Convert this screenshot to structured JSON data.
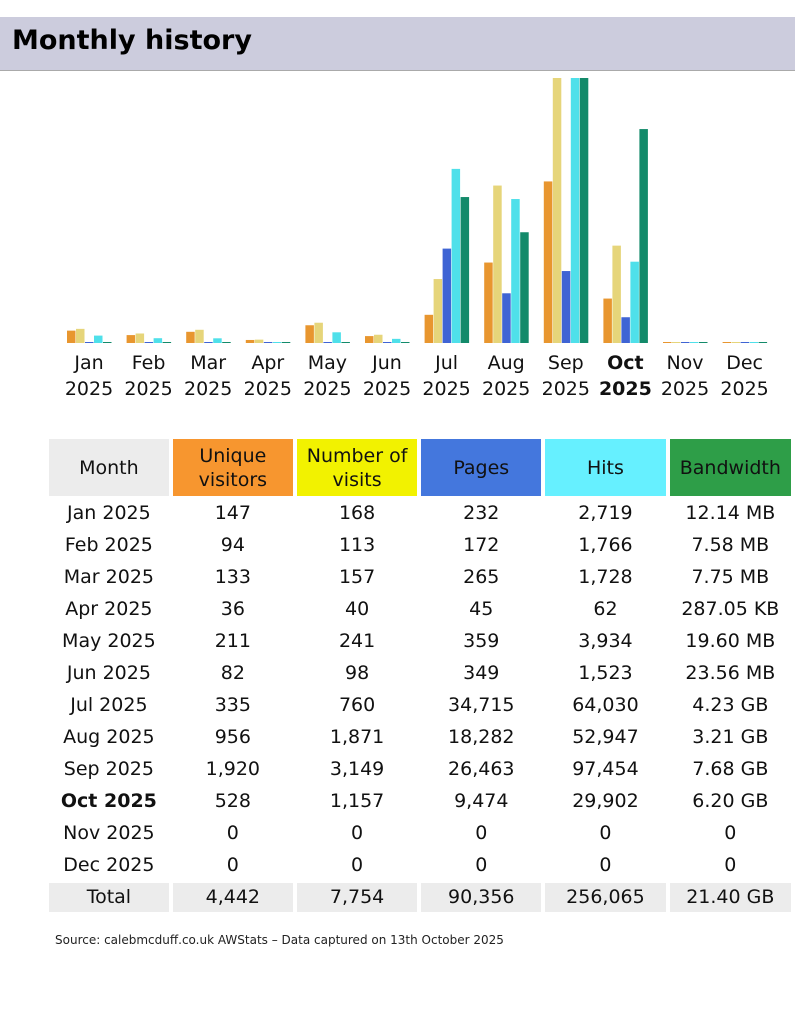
{
  "title": "Monthly history",
  "colors": {
    "unique": "#f7962f",
    "visits": "#f2f200",
    "pages": "#4477dd",
    "hits": "#66f0ff",
    "bandwidth": "#2e9e48",
    "header_bg": "#ccccdd"
  },
  "table": {
    "headers": [
      "Month",
      "Unique visitors",
      "Number of visits",
      "Pages",
      "Hits",
      "Bandwidth"
    ],
    "rows": [
      [
        "Jan 2025",
        "147",
        "168",
        "232",
        "2,719",
        "12.14 MB"
      ],
      [
        "Feb 2025",
        "94",
        "113",
        "172",
        "1,766",
        "7.58 MB"
      ],
      [
        "Mar 2025",
        "133",
        "157",
        "265",
        "1,728",
        "7.75 MB"
      ],
      [
        "Apr 2025",
        "36",
        "40",
        "45",
        "62",
        "287.05 KB"
      ],
      [
        "May 2025",
        "211",
        "241",
        "359",
        "3,934",
        "19.60 MB"
      ],
      [
        "Jun 2025",
        "82",
        "98",
        "349",
        "1,523",
        "23.56 MB"
      ],
      [
        "Jul 2025",
        "335",
        "760",
        "34,715",
        "64,030",
        "4.23 GB"
      ],
      [
        "Aug 2025",
        "956",
        "1,871",
        "18,282",
        "52,947",
        "3.21 GB"
      ],
      [
        "Sep 2025",
        "1,920",
        "3,149",
        "26,463",
        "97,454",
        "7.68 GB"
      ],
      [
        "Oct 2025",
        "528",
        "1,157",
        "9,474",
        "29,902",
        "6.20 GB"
      ],
      [
        "Nov 2025",
        "0",
        "0",
        "0",
        "0",
        "0"
      ],
      [
        "Dec 2025",
        "0",
        "0",
        "0",
        "0",
        "0"
      ]
    ],
    "total": [
      "Total",
      "4,442",
      "7,754",
      "90,356",
      "256,065",
      "21.40 GB"
    ]
  },
  "source": "Source: calebmcduff.co.uk AWStats – Data captured on 13th October 2025",
  "chart_data": {
    "type": "bar",
    "current_month": "Oct",
    "categories": [
      [
        "Jan",
        "2025"
      ],
      [
        "Feb",
        "2025"
      ],
      [
        "Mar",
        "2025"
      ],
      [
        "Apr",
        "2025"
      ],
      [
        "May",
        "2025"
      ],
      [
        "Jun",
        "2025"
      ],
      [
        "Jul",
        "2025"
      ],
      [
        "Aug",
        "2025"
      ],
      [
        "Sep",
        "2025"
      ],
      [
        "Oct",
        "2025"
      ],
      [
        "Nov",
        "2025"
      ],
      [
        "Dec",
        "2025"
      ]
    ],
    "series": [
      {
        "name": "Unique visitors",
        "color": "#e8962f",
        "values": [
          147,
          94,
          133,
          36,
          211,
          82,
          335,
          956,
          1920,
          528,
          0,
          0
        ]
      },
      {
        "name": "Number of visits",
        "color": "#e6d57a",
        "values": [
          168,
          113,
          157,
          40,
          241,
          98,
          760,
          1871,
          3149,
          1157,
          0,
          0
        ]
      },
      {
        "name": "Pages",
        "color": "#3f64d4",
        "values": [
          232,
          172,
          265,
          45,
          359,
          349,
          34715,
          18282,
          26463,
          9474,
          0,
          0
        ]
      },
      {
        "name": "Hits",
        "color": "#4fe0ea",
        "values": [
          2719,
          1766,
          1728,
          62,
          3934,
          1523,
          64030,
          52947,
          97454,
          29902,
          0,
          0
        ]
      },
      {
        "name": "Bandwidth (MB)",
        "color": "#138a6a",
        "values": [
          12.14,
          7.58,
          7.75,
          0.28,
          19.6,
          23.56,
          4331.5,
          3287.0,
          7864.3,
          6348.8,
          0,
          0
        ]
      }
    ],
    "grid": false
  }
}
